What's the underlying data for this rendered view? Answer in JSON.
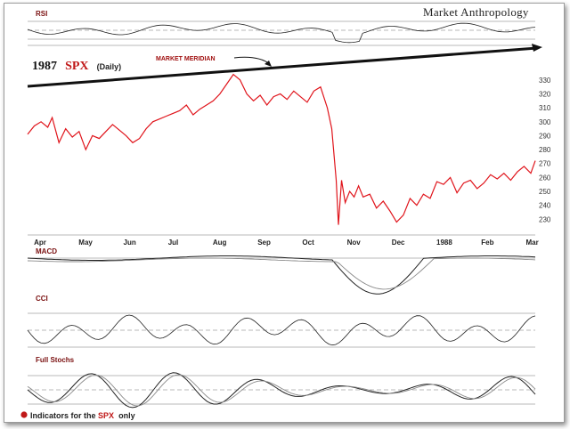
{
  "header": {
    "brand": "Market Anthropology"
  },
  "title": {
    "year": "1987",
    "ticker": "SPX",
    "period": "(Daily)"
  },
  "annotation": {
    "label": "MARKET MERIDIAN"
  },
  "panels": {
    "rsi": "RSI",
    "macd": "MACD",
    "cci": "CCI",
    "stochs": "Full Stochs"
  },
  "footer": {
    "prefix": "Indicators for the ",
    "ticker": "SPX",
    "suffix": " only"
  },
  "colors": {
    "price": "#e0141b",
    "indicator": "#222222",
    "shade": "#8a8a8a",
    "marker": "#c01818"
  },
  "chart_data": {
    "type": "line",
    "title": "1987 SPX (Daily)",
    "y_ticks": [
      230,
      240,
      250,
      260,
      270,
      280,
      290,
      300,
      310,
      320,
      330
    ],
    "ylim": [
      220,
      335
    ],
    "x_ticks": [
      "Apr",
      "May",
      "Jun",
      "Jul",
      "Aug",
      "Sep",
      "Oct",
      "Nov",
      "Dec",
      "1988",
      "Feb",
      "Mar"
    ],
    "x_tick_pos": [
      1,
      2,
      3,
      4,
      5,
      6,
      7,
      8,
      9,
      10,
      11,
      12
    ],
    "xlim": [
      0.7,
      12.05
    ],
    "series": [
      {
        "x": [
          0.7,
          0.85,
          1.0,
          1.15,
          1.25,
          1.4,
          1.55,
          1.7,
          1.85,
          2.0,
          2.15,
          2.3,
          2.45,
          2.6,
          2.75,
          2.9,
          3.05,
          3.2,
          3.35,
          3.5,
          3.65,
          3.8,
          3.95,
          4.1,
          4.25,
          4.4,
          4.55,
          4.7,
          4.85,
          5.0,
          5.15,
          5.3,
          5.45,
          5.6,
          5.75,
          5.9,
          6.05,
          6.2,
          6.35,
          6.5,
          6.65,
          6.8,
          6.95,
          7.1,
          7.25,
          7.4,
          7.5,
          7.6,
          7.65,
          7.72,
          7.8,
          7.9,
          8.0,
          8.1,
          8.2,
          8.35,
          8.5,
          8.65,
          8.8,
          8.95,
          9.1,
          9.25,
          9.4,
          9.55,
          9.7,
          9.85,
          10.0,
          10.15,
          10.3,
          10.45,
          10.6,
          10.75,
          10.9,
          11.05,
          11.2,
          11.35,
          11.5,
          11.65,
          11.8,
          11.95,
          12.05
        ],
        "values": [
          291,
          297,
          300,
          296,
          303,
          285,
          295,
          289,
          293,
          280,
          290,
          288,
          293,
          298,
          294,
          290,
          285,
          288,
          295,
          300,
          302,
          304,
          306,
          308,
          312,
          305,
          309,
          312,
          315,
          320,
          327,
          334,
          330,
          320,
          315,
          319,
          312,
          318,
          320,
          316,
          322,
          318,
          314,
          322,
          325,
          310,
          295,
          258,
          226,
          258,
          242,
          250,
          246,
          254,
          246,
          248,
          238,
          243,
          236,
          228,
          233,
          245,
          240,
          248,
          245,
          257,
          255,
          260,
          249,
          256,
          258,
          252,
          256,
          262,
          259,
          263,
          258,
          264,
          268,
          263,
          272
        ]
      }
    ]
  }
}
